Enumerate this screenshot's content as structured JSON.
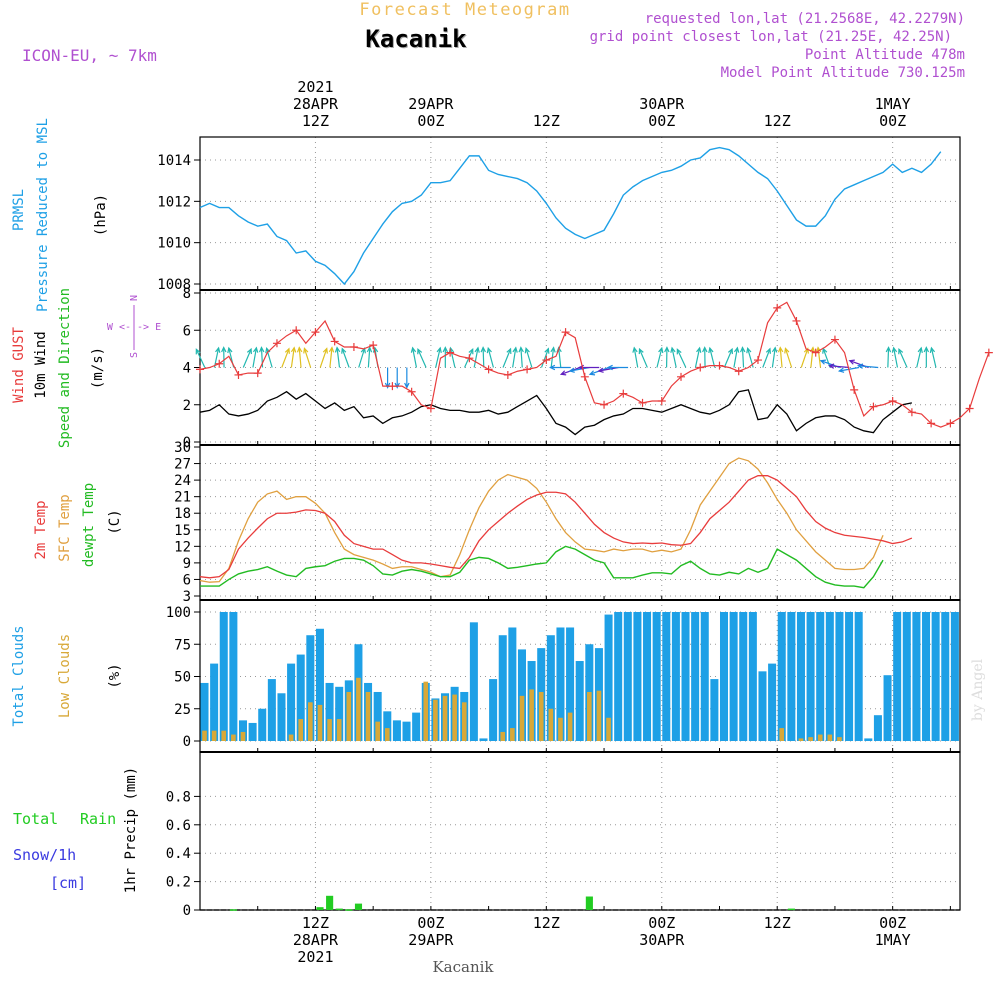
{
  "header": {
    "title": "Forecast Meteogram",
    "location": "Kacanik",
    "model": "ICON-EU, ~ 7km",
    "requested": "requested lon,lat (21.2568E, 42.2279N)",
    "grid_point": "grid point closest lon,lat (21.25E, 42.25N)",
    "point_altitude": "Point Altitude 478m",
    "model_altitude": "Model Point Altitude 730.125m",
    "credit": "by Angel",
    "footer_location": "Kacanik",
    "colors": {
      "title": "#f0c060",
      "meta": "#b050d0",
      "pressure": "#1ea0e6",
      "gust": "#e83c3c",
      "wind": "#000000",
      "arrows": "#22bb22",
      "temp2m": "#e83c3c",
      "sfc": "#e0a040",
      "dewpt": "#22bb22",
      "total_cloud": "#1ea0e6",
      "low_cloud": "#d8a838",
      "rain": "#22cc22",
      "snow": "#3a3ae0"
    }
  },
  "time_axis": {
    "top": [
      {
        "h": 12,
        "l1": "2021",
        "l2": "28APR",
        "l3": "12Z"
      },
      {
        "h": 24,
        "l1": "",
        "l2": "29APR",
        "l3": "00Z"
      },
      {
        "h": 36,
        "l1": "",
        "l2": "",
        "l3": "12Z"
      },
      {
        "h": 48,
        "l1": "",
        "l2": "30APR",
        "l3": "00Z"
      },
      {
        "h": 60,
        "l1": "",
        "l2": "",
        "l3": "12Z"
      },
      {
        "h": 72,
        "l1": "",
        "l2": "1MAY",
        "l3": "00Z"
      }
    ],
    "bottom": [
      {
        "h": 12,
        "l1": "12Z",
        "l2": "28APR",
        "l3": "2021"
      },
      {
        "h": 24,
        "l1": "00Z",
        "l2": "29APR",
        "l3": ""
      },
      {
        "h": 36,
        "l1": "12Z",
        "l2": "",
        "l3": ""
      },
      {
        "h": 48,
        "l1": "00Z",
        "l2": "30APR",
        "l3": ""
      },
      {
        "h": 60,
        "l1": "12Z",
        "l2": "",
        "l3": ""
      },
      {
        "h": 72,
        "l1": "00Z",
        "l2": "1MAY",
        "l3": ""
      }
    ]
  },
  "labels": {
    "p1": [
      "PRMSL",
      "Pressure Reduced to MSL",
      "(hPa)"
    ],
    "p2": [
      "Wind GUST",
      "10m Wind",
      "Speed and Direction",
      "(m/s)"
    ],
    "p2_compass": [
      "W <-|-> E",
      "N",
      "S"
    ],
    "p3": [
      "2m Temp",
      "SFC Temp",
      "dewpt Temp",
      "(C)"
    ],
    "p4": [
      "Total Clouds",
      "Low Clouds",
      "(%)"
    ],
    "p5": [
      "Total",
      "Rain",
      "Snow/1h",
      "[cm]",
      "1hr Precip (mm)"
    ]
  },
  "chart_data": [
    {
      "type": "line",
      "title": "PRMSL Pressure Reduced to MSL",
      "ylabel": "(hPa)",
      "x_hours_start": 0,
      "x_step_hours": 1,
      "ylim": [
        1007.5,
        1015.5
      ],
      "yticks": [
        1008,
        1010,
        1012,
        1014
      ],
      "series": [
        {
          "name": "PRMSL",
          "values": [
            1011.7,
            1011.9,
            1011.7,
            1011.7,
            1011.3,
            1011.0,
            1010.8,
            1010.9,
            1010.3,
            1010.1,
            1009.5,
            1009.6,
            1009.1,
            1008.9,
            1008.5,
            1008.0,
            1008.6,
            1009.5,
            1010.2,
            1010.9,
            1011.5,
            1011.9,
            1012.0,
            1012.3,
            1012.9,
            1012.9,
            1013.0,
            1013.6,
            1014.2,
            1014.2,
            1013.5,
            1013.3,
            1013.2,
            1013.1,
            1012.9,
            1012.5,
            1011.9,
            1011.2,
            1010.7,
            1010.4,
            1010.2,
            1010.4,
            1010.6,
            1011.4,
            1012.3,
            1012.7,
            1013.0,
            1013.2,
            1013.4,
            1013.5,
            1013.7,
            1014.0,
            1014.1,
            1014.5,
            1014.6,
            1014.5,
            1014.2,
            1013.8,
            1013.4,
            1013.1,
            1012.5,
            1011.8,
            1011.1,
            1010.8,
            1010.8,
            1011.3,
            1012.1,
            1012.6,
            1012.8,
            1013.0,
            1013.2,
            1013.4,
            1013.8,
            1013.4,
            1013.6,
            1013.4,
            1013.8,
            1014.4
          ]
        }
      ]
    },
    {
      "type": "line",
      "title": "Wind GUST / 10m Wind Speed and Direction",
      "ylabel": "(m/s)",
      "x_hours_start": 0,
      "x_step_hours": 1,
      "ylim": [
        0,
        8
      ],
      "yticks": [
        0,
        2,
        4,
        6,
        8
      ],
      "series": [
        {
          "name": "Wind GUST",
          "values": [
            3.9,
            4.0,
            4.2,
            4.6,
            3.6,
            3.7,
            3.7,
            4.8,
            5.3,
            5.7,
            6.0,
            5.3,
            5.9,
            6.5,
            5.4,
            5.1,
            5.1,
            5.0,
            5.2,
            3.0,
            3.0,
            3.0,
            2.7,
            2.0,
            1.8,
            4.5,
            4.8,
            4.6,
            4.5,
            4.2,
            3.9,
            3.7,
            3.6,
            3.8,
            3.9,
            4.0,
            4.4,
            4.6,
            5.9,
            5.6,
            3.5,
            2.1,
            2.0,
            2.2,
            2.6,
            2.4,
            2.1,
            2.2,
            2.2,
            3.0,
            3.5,
            3.8,
            4.0,
            4.1,
            4.1,
            4.0,
            3.8,
            4.0,
            4.4,
            6.4,
            7.2,
            7.5,
            6.5,
            5.0,
            4.8,
            5.1,
            5.5,
            4.8,
            2.8,
            1.4,
            1.9,
            2.0,
            2.2,
            2.0,
            1.6,
            1.5,
            1.0,
            0.8,
            1.0,
            1.3,
            1.8,
            3.4,
            4.8
          ]
        },
        {
          "name": "10m Wind",
          "values": [
            1.6,
            1.7,
            2.0,
            1.5,
            1.4,
            1.5,
            1.7,
            2.2,
            2.4,
            2.7,
            2.3,
            2.6,
            2.2,
            1.8,
            2.1,
            1.7,
            1.9,
            1.3,
            1.4,
            1.0,
            1.3,
            1.4,
            1.6,
            1.9,
            2.0,
            1.8,
            1.7,
            1.7,
            1.6,
            1.6,
            1.7,
            1.5,
            1.6,
            1.9,
            2.2,
            2.5,
            1.8,
            1.0,
            0.8,
            0.4,
            0.8,
            0.9,
            1.2,
            1.4,
            1.5,
            1.8,
            1.8,
            1.7,
            1.6,
            1.8,
            2.0,
            1.8,
            1.6,
            1.5,
            1.7,
            2.0,
            2.7,
            2.8,
            1.2,
            1.3,
            2.0,
            1.5,
            0.6,
            1.0,
            1.3,
            1.4,
            1.4,
            1.2,
            0.8,
            0.6,
            0.5,
            1.2,
            1.6,
            2.0,
            2.1
          ]
        }
      ]
    },
    {
      "type": "line",
      "title": "2m Temp / SFC Temp / dewpt Temp",
      "ylabel": "(C)",
      "x_hours_start": 0,
      "x_step_hours": 1,
      "ylim": [
        3,
        30
      ],
      "yticks": [
        3,
        6,
        9,
        12,
        15,
        18,
        21,
        24,
        27,
        30
      ],
      "series": [
        {
          "name": "2m Temp",
          "values": [
            6.5,
            6.3,
            6.5,
            7.8,
            11.5,
            13.5,
            15.3,
            17.0,
            18.0,
            18.0,
            18.2,
            18.6,
            18.5,
            18.0,
            16.5,
            14.0,
            12.5,
            12.0,
            11.5,
            11.5,
            10.5,
            9.5,
            9.0,
            9.0,
            8.8,
            8.5,
            8.2,
            8.0,
            10.0,
            13.0,
            15.0,
            16.5,
            18.0,
            19.3,
            20.5,
            21.3,
            21.8,
            21.8,
            21.5,
            20.0,
            18.0,
            16.0,
            14.5,
            13.5,
            12.8,
            12.5,
            12.6,
            12.5,
            12.6,
            12.3,
            12.2,
            12.5,
            14.5,
            17.0,
            18.5,
            20.0,
            22.0,
            24.0,
            24.8,
            24.8,
            24.0,
            22.5,
            21.0,
            18.5,
            16.5,
            15.3,
            14.5,
            14.0,
            13.8,
            13.6,
            13.3,
            13.0,
            12.5,
            12.8,
            13.5
          ]
        },
        {
          "name": "SFC Temp",
          "values": [
            5.8,
            5.5,
            5.6,
            8.0,
            13.0,
            17.0,
            20.0,
            21.5,
            22.0,
            20.5,
            21.0,
            21.0,
            19.8,
            18.0,
            14.5,
            11.5,
            10.5,
            10.0,
            9.5,
            8.8,
            8.0,
            8.3,
            8.3,
            7.8,
            7.3,
            6.5,
            6.8,
            10.5,
            15.0,
            19.0,
            22.0,
            24.0,
            25.0,
            24.5,
            24.0,
            22.5,
            20.0,
            17.0,
            14.5,
            12.8,
            11.5,
            11.3,
            11.0,
            11.5,
            11.2,
            11.5,
            11.5,
            11.0,
            11.3,
            11.0,
            11.5,
            15.0,
            19.5,
            22.0,
            24.5,
            27.0,
            28.0,
            27.5,
            26.0,
            23.5,
            20.5,
            18.0,
            15.0,
            13.0,
            11.0,
            9.5,
            8.0,
            7.8,
            7.8,
            8.0,
            10.0,
            14.0
          ]
        },
        {
          "name": "dewpt Temp",
          "values": [
            4.8,
            4.8,
            4.8,
            6.0,
            7.0,
            7.5,
            7.8,
            8.3,
            7.5,
            6.8,
            6.5,
            8.0,
            8.3,
            8.5,
            9.3,
            9.8,
            9.8,
            9.5,
            8.5,
            7.0,
            6.8,
            7.5,
            7.8,
            7.5,
            7.0,
            6.5,
            6.5,
            7.3,
            9.5,
            10.0,
            9.8,
            9.0,
            8.0,
            8.2,
            8.5,
            8.8,
            9.0,
            11.0,
            12.0,
            11.5,
            10.5,
            9.5,
            9.0,
            6.3,
            6.3,
            6.3,
            6.8,
            7.2,
            7.2,
            7.0,
            8.5,
            9.3,
            8.0,
            7.0,
            6.8,
            7.3,
            7.0,
            8.0,
            7.3,
            8.0,
            11.5,
            10.5,
            9.5,
            8.0,
            6.5,
            5.5,
            5.0,
            4.8,
            4.8,
            4.5,
            6.5,
            9.5
          ]
        }
      ]
    },
    {
      "type": "bar",
      "title": "Total Clouds / Low Clouds",
      "ylabel": "(%)",
      "x_hours_start": 0,
      "x_step_hours": 1,
      "ylim": [
        -5,
        105
      ],
      "yticks": [
        0,
        25,
        50,
        75,
        100
      ],
      "series": [
        {
          "name": "Total Clouds",
          "values": [
            45,
            60,
            100,
            100,
            16,
            14,
            25,
            48,
            37,
            60,
            67,
            82,
            87,
            45,
            42,
            47,
            75,
            45,
            38,
            23,
            16,
            15,
            22,
            45,
            33,
            37,
            42,
            38,
            92,
            2,
            48,
            82,
            88,
            71,
            62,
            72,
            82,
            88,
            88,
            62,
            75,
            72,
            98,
            100,
            100,
            100,
            100,
            100,
            100,
            100,
            100,
            100,
            100,
            48,
            100,
            100,
            100,
            100,
            54,
            60,
            100,
            100,
            100,
            100,
            100,
            100,
            100,
            100,
            100,
            2,
            20,
            51,
            100,
            100,
            100,
            100,
            100,
            100,
            100
          ]
        },
        {
          "name": "Low Clouds",
          "values": [
            8,
            8,
            8,
            5,
            7,
            0,
            0,
            0,
            0,
            5,
            17,
            30,
            28,
            17,
            17,
            38,
            49,
            38,
            15,
            10,
            0,
            0,
            0,
            46,
            32,
            35,
            36,
            30,
            0,
            0,
            0,
            7,
            10,
            35,
            40,
            38,
            25,
            18,
            22,
            0,
            38,
            39,
            18,
            0,
            0,
            0,
            0,
            0,
            0,
            0,
            0,
            0,
            0,
            0,
            0,
            0,
            0,
            0,
            0,
            0,
            10,
            0,
            2,
            3,
            5,
            5,
            3,
            0,
            0,
            0,
            0,
            0,
            0,
            0,
            0,
            0,
            0,
            0,
            0
          ]
        }
      ]
    },
    {
      "type": "bar",
      "title": "1hr Precip",
      "ylabel": "1hr Precip (mm)",
      "x_hours_start": 0,
      "x_step_hours": 1,
      "ylim": [
        0,
        1.0
      ],
      "yticks": [
        0,
        0.2,
        0.4,
        0.6,
        0.8
      ],
      "series": [
        {
          "name": "Total Rain",
          "points": [
            [
              3,
              0.005
            ],
            [
              12,
              0.02
            ],
            [
              13,
              0.1
            ],
            [
              14,
              0.01
            ],
            [
              15,
              0.005
            ],
            [
              16,
              0.045
            ],
            [
              40,
              0.095
            ],
            [
              61,
              0.01
            ]
          ]
        },
        {
          "name": "Snow/1h",
          "points": []
        }
      ]
    }
  ]
}
